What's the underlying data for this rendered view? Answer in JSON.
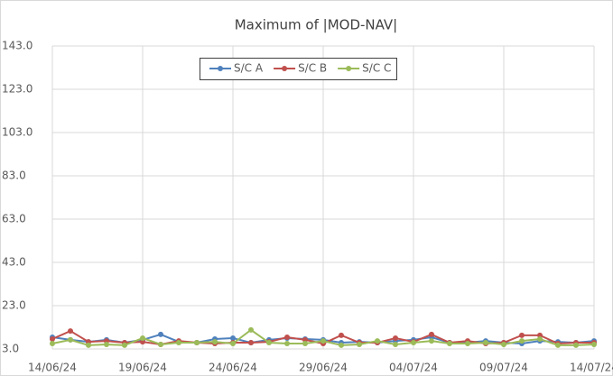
{
  "chart_data": {
    "type": "line",
    "title": "Maximum  of |MOD-NAV|",
    "categories": [
      "14/06/24",
      null,
      null,
      null,
      null,
      "19/06/24",
      null,
      null,
      null,
      null,
      "24/06/24",
      null,
      null,
      null,
      null,
      "29/06/24",
      null,
      null,
      null,
      null,
      "04/07/24",
      null,
      null,
      null,
      null,
      "09/07/24",
      null,
      null,
      null,
      null,
      "14/07/24"
    ],
    "series": [
      {
        "name": "S/C A",
        "color": "#4f81bd",
        "values": [
          8.4,
          7.2,
          6.3,
          7.2,
          5.9,
          7.2,
          9.7,
          6.3,
          5.9,
          7.6,
          8.0,
          5.9,
          7.2,
          8.0,
          7.6,
          7.2,
          5.9,
          6.3,
          5.9,
          6.7,
          7.2,
          8.4,
          5.9,
          5.9,
          6.7,
          5.9,
          5.5,
          6.7,
          6.3,
          5.9,
          6.7
        ]
      },
      {
        "name": "S/C B",
        "color": "#c0504d",
        "values": [
          7.6,
          11.3,
          6.3,
          6.7,
          5.9,
          6.3,
          5.1,
          6.7,
          5.9,
          5.5,
          5.9,
          5.9,
          6.3,
          8.4,
          7.2,
          5.5,
          9.3,
          5.9,
          5.9,
          8.0,
          6.3,
          9.7,
          5.9,
          6.7,
          5.5,
          5.9,
          9.3,
          9.3,
          5.5,
          5.9,
          5.9
        ]
      },
      {
        "name": "S/C C",
        "color": "#9bbb59",
        "values": [
          5.5,
          7.2,
          4.7,
          5.1,
          4.7,
          8.0,
          5.1,
          5.9,
          5.9,
          6.3,
          5.5,
          11.8,
          5.9,
          5.5,
          5.5,
          6.7,
          4.7,
          5.1,
          6.7,
          5.1,
          5.9,
          6.7,
          5.5,
          5.5,
          5.9,
          5.1,
          6.7,
          7.6,
          4.7,
          4.7,
          5.1
        ]
      }
    ],
    "ylim": [
      3,
      143
    ],
    "yticks": [
      {
        "value": 3,
        "label": "3.0"
      },
      {
        "value": 23,
        "label": "23.0"
      },
      {
        "value": 43,
        "label": "43.0"
      },
      {
        "value": 63,
        "label": "63.0"
      },
      {
        "value": 83,
        "label": "83.0"
      },
      {
        "value": 103,
        "label": "103.0"
      },
      {
        "value": 123,
        "label": "123.0"
      },
      {
        "value": 143,
        "label": "143.0"
      }
    ],
    "grid": true
  }
}
